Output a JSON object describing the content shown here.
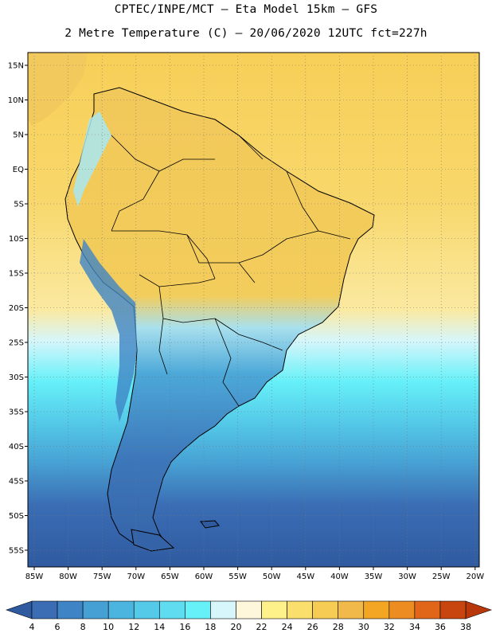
{
  "header": {
    "title_line1": "CPTEC/INPE/MCT –  Eta Model 15km – GFS",
    "title_line2": "2 Metre Temperature (C) – 20/06/2020 12UTC fct=227h"
  },
  "map": {
    "lat_labels": [
      "15N",
      "10N",
      "5N",
      "EQ",
      "5S",
      "10S",
      "15S",
      "20S",
      "25S",
      "30S",
      "35S",
      "40S",
      "45S",
      "50S",
      "55S"
    ],
    "lon_labels": [
      "85W",
      "80W",
      "75W",
      "70W",
      "65W",
      "60W",
      "55W",
      "50W",
      "45W",
      "40W",
      "35W",
      "30W",
      "25W",
      "20W"
    ],
    "gridlines": "dotted"
  },
  "colorbar": {
    "labels": [
      "4",
      "6",
      "8",
      "10",
      "12",
      "14",
      "16",
      "18",
      "20",
      "22",
      "24",
      "26",
      "28",
      "30",
      "32",
      "34",
      "36",
      "38"
    ],
    "colors": [
      "#3a6db4",
      "#3f84c4",
      "#47a0d3",
      "#4cb5df",
      "#54c9e8",
      "#5fdcef",
      "#66f0f8",
      "#d6f6fb",
      "#fff7dc",
      "#fff18a",
      "#fbdf6c",
      "#f7cc54",
      "#f0b94a",
      "#f2a623",
      "#ec8c21",
      "#e1661a",
      "#c9450f"
    ],
    "left_arrow_color": "#2f5aa0",
    "right_arrow_color": "#b8380c"
  }
}
